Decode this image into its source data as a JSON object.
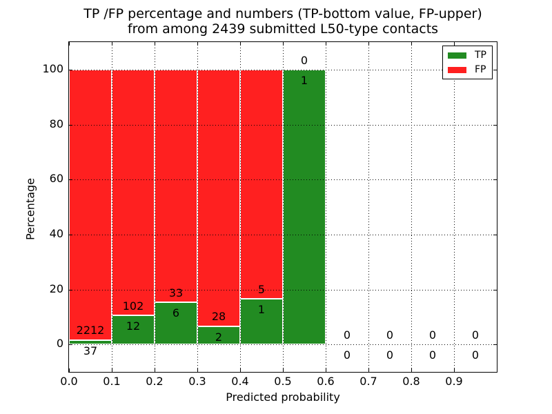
{
  "chart_data": {
    "type": "bar",
    "stacked": true,
    "normalized_to_percent": true,
    "title_line1": "TP /FP percentage and numbers (TP-bottom value, FP-upper)",
    "title_line2": "from among 2439 submitted L50-type contacts",
    "xlabel": "Predicted probability",
    "ylabel": "Percentage",
    "total_contacts": 2439,
    "xlim": [
      0.0,
      1.0
    ],
    "ylim": [
      -10,
      110
    ],
    "bin_width": 0.1,
    "grid": true,
    "legend_position": "upper right",
    "legend": [
      {
        "label": "TP",
        "color": "#228b22"
      },
      {
        "label": "FP",
        "color": "#ff2020"
      }
    ],
    "colors": {
      "tp": "#228b22",
      "fp": "#ff2020",
      "bar_edge": "#ffffff",
      "frame": "#000000",
      "background": "#ffffff"
    },
    "yticks": [
      {
        "v": 0,
        "label": "0"
      },
      {
        "v": 20,
        "label": "20"
      },
      {
        "v": 40,
        "label": "40"
      },
      {
        "v": 60,
        "label": "60"
      },
      {
        "v": 80,
        "label": "80"
      },
      {
        "v": 100,
        "label": "100"
      }
    ],
    "xticks": [
      {
        "v": 0.0,
        "label": "0.0"
      },
      {
        "v": 0.1,
        "label": "0.1"
      },
      {
        "v": 0.2,
        "label": "0.2"
      },
      {
        "v": 0.3,
        "label": "0.3"
      },
      {
        "v": 0.4,
        "label": "0.4"
      },
      {
        "v": 0.5,
        "label": "0.5"
      },
      {
        "v": 0.6,
        "label": "0.6"
      },
      {
        "v": 0.7,
        "label": "0.7"
      },
      {
        "v": 0.8,
        "label": "0.8"
      },
      {
        "v": 0.9,
        "label": "0.9"
      }
    ],
    "bins": [
      {
        "x0": 0.0,
        "x1": 0.1,
        "tp": 37,
        "fp": 2212
      },
      {
        "x0": 0.1,
        "x1": 0.2,
        "tp": 12,
        "fp": 102
      },
      {
        "x0": 0.2,
        "x1": 0.3,
        "tp": 6,
        "fp": 33
      },
      {
        "x0": 0.3,
        "x1": 0.4,
        "tp": 2,
        "fp": 28
      },
      {
        "x0": 0.4,
        "x1": 0.5,
        "tp": 1,
        "fp": 5
      },
      {
        "x0": 0.5,
        "x1": 0.6,
        "tp": 1,
        "fp": 0
      },
      {
        "x0": 0.6,
        "x1": 0.7,
        "tp": 0,
        "fp": 0
      },
      {
        "x0": 0.7,
        "x1": 0.8,
        "tp": 0,
        "fp": 0
      },
      {
        "x0": 0.8,
        "x1": 0.9,
        "tp": 0,
        "fp": 0
      },
      {
        "x0": 0.9,
        "x1": 1.0,
        "tp": 0,
        "fp": 0
      }
    ]
  }
}
